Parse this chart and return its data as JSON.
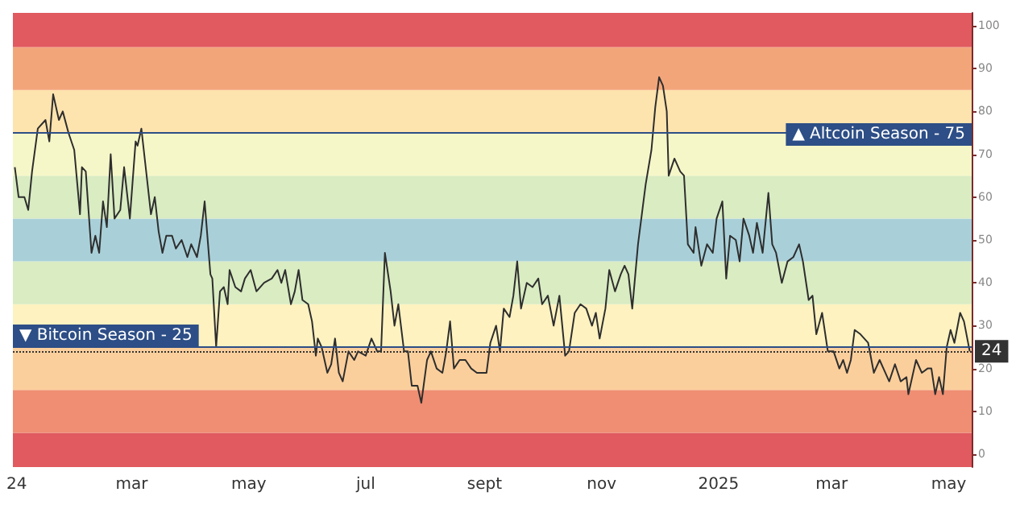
{
  "chart_data": {
    "type": "line",
    "x": [
      "2023-12-31",
      "2024-01-02",
      "2024-01-05",
      "2024-01-07",
      "2024-01-09",
      "2024-01-12",
      "2024-01-16",
      "2024-01-18",
      "2024-01-20",
      "2024-01-23",
      "2024-01-25",
      "2024-01-28",
      "2024-01-31",
      "2024-02-03",
      "2024-02-04",
      "2024-02-06",
      "2024-02-09",
      "2024-02-11",
      "2024-02-13",
      "2024-02-15",
      "2024-02-17",
      "2024-02-19",
      "2024-02-21",
      "2024-02-24",
      "2024-02-26",
      "2024-02-29",
      "2024-03-03",
      "2024-03-04",
      "2024-03-06",
      "2024-03-09",
      "2024-03-11",
      "2024-03-13",
      "2024-03-15",
      "2024-03-17",
      "2024-03-19",
      "2024-03-22",
      "2024-03-24",
      "2024-03-27",
      "2024-03-30",
      "2024-04-01",
      "2024-04-04",
      "2024-04-06",
      "2024-04-08",
      "2024-04-11",
      "2024-04-12",
      "2024-04-14",
      "2024-04-16",
      "2024-04-18",
      "2024-04-20",
      "2024-04-21",
      "2024-04-24",
      "2024-04-27",
      "2024-04-29",
      "2024-05-02",
      "2024-05-05",
      "2024-05-09",
      "2024-05-13",
      "2024-05-16",
      "2024-05-18",
      "2024-05-20",
      "2024-05-23",
      "2024-05-25",
      "2024-05-27",
      "2024-05-29",
      "2024-06-01",
      "2024-06-03",
      "2024-06-05",
      "2024-06-06",
      "2024-06-08",
      "2024-06-11",
      "2024-06-13",
      "2024-06-15",
      "2024-06-17",
      "2024-06-19",
      "2024-06-22",
      "2024-06-25",
      "2024-06-27",
      "2024-07-01",
      "2024-07-04",
      "2024-07-07",
      "2024-07-09",
      "2024-07-11",
      "2024-07-14",
      "2024-07-16",
      "2024-07-18",
      "2024-07-21",
      "2024-07-23",
      "2024-07-25",
      "2024-07-28",
      "2024-07-30",
      "2024-08-02",
      "2024-08-04",
      "2024-08-07",
      "2024-08-10",
      "2024-08-12",
      "2024-08-14",
      "2024-08-16",
      "2024-08-19",
      "2024-08-22",
      "2024-08-25",
      "2024-08-28",
      "2024-09-02",
      "2024-09-04",
      "2024-09-07",
      "2024-09-09",
      "2024-09-11",
      "2024-09-14",
      "2024-09-16",
      "2024-09-18",
      "2024-09-20",
      "2024-09-23",
      "2024-09-26",
      "2024-09-29",
      "2024-10-01",
      "2024-10-04",
      "2024-10-07",
      "2024-10-10",
      "2024-10-13",
      "2024-10-15",
      "2024-10-18",
      "2024-10-21",
      "2024-10-24",
      "2024-10-27",
      "2024-10-29",
      "2024-10-31",
      "2024-11-03",
      "2024-11-05",
      "2024-11-08",
      "2024-11-11",
      "2024-11-13",
      "2024-11-15",
      "2024-11-17",
      "2024-11-20",
      "2024-11-22",
      "2024-11-24",
      "2024-11-27",
      "2024-11-29",
      "2024-12-01",
      "2024-12-03",
      "2024-12-05",
      "2024-12-06",
      "2024-12-09",
      "2024-12-12",
      "2024-12-14",
      "2024-12-16",
      "2024-12-19",
      "2024-12-20",
      "2024-12-23",
      "2024-12-26",
      "2024-12-29",
      "2024-12-31",
      "2025-01-03",
      "2025-01-05",
      "2025-01-07",
      "2025-01-10",
      "2025-01-12",
      "2025-01-14",
      "2025-01-17",
      "2025-01-19",
      "2025-01-21",
      "2025-01-24",
      "2025-01-27",
      "2025-01-29",
      "2025-01-31",
      "2025-02-03",
      "2025-02-06",
      "2025-02-09",
      "2025-02-12",
      "2025-02-14",
      "2025-02-17",
      "2025-02-19",
      "2025-02-21",
      "2025-02-24",
      "2025-02-27",
      "2025-03-02",
      "2025-03-05",
      "2025-03-07",
      "2025-03-09",
      "2025-03-11",
      "2025-03-13",
      "2025-03-16",
      "2025-03-20",
      "2025-03-23",
      "2025-03-26",
      "2025-03-28",
      "2025-03-31",
      "2025-04-03",
      "2025-04-06",
      "2025-04-09",
      "2025-04-10",
      "2025-04-14",
      "2025-04-17",
      "2025-04-20",
      "2025-04-22",
      "2025-04-24",
      "2025-04-26",
      "2025-04-28",
      "2025-04-30",
      "2025-05-02",
      "2025-05-04",
      "2025-05-07",
      "2025-05-09",
      "2025-05-12"
    ],
    "series": [
      {
        "color": "#2e2e2e",
        "values": [
          67,
          60,
          60,
          57,
          66,
          76,
          78,
          73,
          84,
          78,
          80,
          75,
          71,
          56,
          67,
          66,
          47,
          51,
          47,
          59,
          53,
          70,
          55,
          57,
          67,
          55,
          73,
          72,
          76,
          64,
          56,
          60,
          52,
          47,
          51,
          51,
          48,
          50,
          46,
          49,
          46,
          51,
          59,
          42,
          41,
          25,
          38,
          39,
          35,
          43,
          39,
          38,
          41,
          43,
          38,
          40,
          41,
          43,
          40,
          43,
          35,
          38,
          43,
          36,
          35,
          31,
          23,
          27,
          25,
          19,
          21,
          27,
          19,
          17,
          24,
          22,
          24,
          23,
          27,
          24,
          24,
          47,
          38,
          30,
          35,
          24,
          24,
          16,
          16,
          12,
          22,
          24,
          20,
          19,
          24,
          31,
          20,
          22,
          22,
          20,
          19,
          19,
          26,
          30,
          24,
          34,
          32,
          37,
          45,
          34,
          40,
          39,
          41,
          35,
          37,
          30,
          37,
          23,
          24,
          33,
          35,
          34,
          30,
          33,
          27,
          34,
          43,
          38,
          42,
          44,
          42,
          34,
          49,
          56,
          63,
          71,
          81,
          88,
          86,
          80,
          65,
          69,
          66,
          65,
          49,
          47,
          53,
          44,
          49,
          47,
          55,
          59,
          41,
          51,
          50,
          45,
          55,
          51,
          47,
          54,
          47,
          61,
          49,
          47,
          40,
          45,
          46,
          49,
          45,
          36,
          37,
          28,
          33,
          24,
          24,
          20,
          22,
          19,
          22,
          29,
          28,
          26,
          19,
          22,
          20,
          17,
          21,
          17,
          18,
          14,
          22,
          19,
          20,
          20,
          14,
          18,
          14,
          25,
          29,
          26,
          33,
          31,
          24
        ]
      }
    ],
    "xlim": [
      "2023-12-30",
      "2025-05-13"
    ],
    "xticks": [
      {
        "value": "2024-01-01",
        "label": "24"
      },
      {
        "value": "2024-03-01",
        "label": "mar"
      },
      {
        "value": "2024-05-01",
        "label": "may"
      },
      {
        "value": "2024-07-01",
        "label": "jul"
      },
      {
        "value": "2024-09-01",
        "label": "sept"
      },
      {
        "value": "2024-11-01",
        "label": "nov"
      },
      {
        "value": "2025-01-01",
        "label": "2025"
      },
      {
        "value": "2025-03-01",
        "label": "mar"
      },
      {
        "value": "2025-05-01",
        "label": "may"
      }
    ],
    "ylim": [
      -3,
      103
    ],
    "yticks": [
      0,
      10,
      20,
      30,
      40,
      50,
      60,
      70,
      80,
      90,
      100
    ],
    "grid": false,
    "bands": [
      {
        "axis": "y",
        "from": -3,
        "to": 5,
        "color": "#e05a5f"
      },
      {
        "axis": "y",
        "from": 5,
        "to": 15,
        "color": "#ef8e72"
      },
      {
        "axis": "y",
        "from": 15,
        "to": 25,
        "color": "#fbcf9c"
      },
      {
        "axis": "y",
        "from": 25,
        "to": 35,
        "color": "#fdf2c0"
      },
      {
        "axis": "y",
        "from": 35,
        "to": 45,
        "color": "#d9ecc2"
      },
      {
        "axis": "y",
        "from": 45,
        "to": 55,
        "color": "#a9d0d9"
      },
      {
        "axis": "y",
        "from": 55,
        "to": 65,
        "color": "#d9ecc2"
      },
      {
        "axis": "y",
        "from": 65,
        "to": 75,
        "color": "#f6f7c8"
      },
      {
        "axis": "y",
        "from": 75,
        "to": 85,
        "color": "#fde3ae"
      },
      {
        "axis": "y",
        "from": 85,
        "to": 95,
        "color": "#f3a57a"
      },
      {
        "axis": "y",
        "from": 95,
        "to": 103,
        "color": "#e05a5f"
      }
    ],
    "ref_lines": [
      {
        "axis": "y",
        "value": 75,
        "label": "▲ Altcoin Season - 75",
        "color": "#2d4e86",
        "line_style": "solid"
      },
      {
        "axis": "y",
        "value": 25,
        "label": "▼ Bitcoin Season - 25",
        "color": "#2d4e86",
        "line_style": "solid"
      },
      {
        "axis": "y",
        "value": 24,
        "label": "24",
        "color": "#333333",
        "line_style": "dotted"
      }
    ]
  }
}
